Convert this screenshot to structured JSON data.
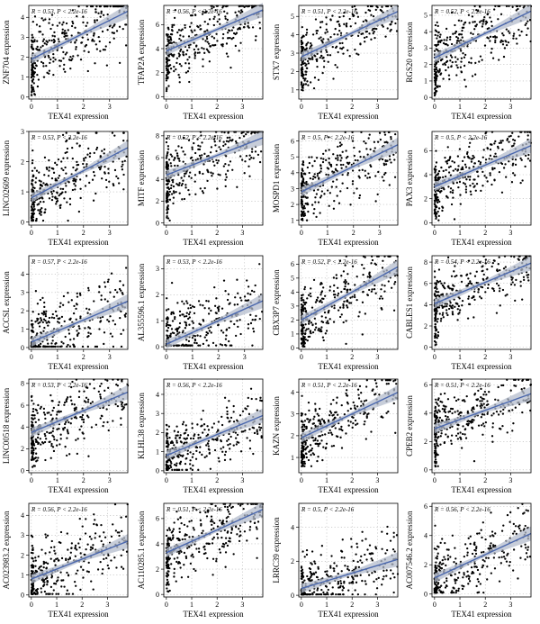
{
  "figure": {
    "x_label": "TEX41 expression",
    "y_suffix": " expression",
    "colors": {
      "points": "#000000",
      "fit_line": "#4a67ad",
      "ci_band": "#b4bccc",
      "grid": "#b5b5b5",
      "frame": "#000000"
    }
  },
  "chart_data": [
    {
      "type": "scatter",
      "gene": "ZNF704",
      "r": "0.53",
      "p": "2.2e-16",
      "annotation": "R = 0.53, P < 2.2e-16",
      "xlabel": "TEX41 expression",
      "ylabel": "ZNF704 expression",
      "xticks": [
        0,
        1,
        2,
        3
      ],
      "yticks": [
        0,
        1,
        2,
        3,
        4
      ],
      "xlim": [
        -0.1,
        3.7
      ],
      "ylim": [
        -0.1,
        4.6
      ],
      "fit": {
        "intercept": 1.9,
        "slope": 0.65
      },
      "x_skew": 1.7,
      "x_max": 3.7,
      "point_noise": 0.9,
      "floor_y": 0.1,
      "n_points": 330
    },
    {
      "type": "scatter",
      "gene": "TFAP2A",
      "r": "0.56",
      "p": "2.2e-16",
      "annotation": "R = 0.56, P < 2.2e-16",
      "xlabel": "TEX41 expression",
      "ylabel": "TFAP2A expression",
      "xticks": [
        0,
        1,
        2,
        3
      ],
      "yticks": [
        0,
        2,
        4,
        6
      ],
      "xlim": [
        -0.1,
        3.8
      ],
      "ylim": [
        -0.2,
        7.6
      ],
      "fit": {
        "intercept": 3.8,
        "slope": 0.9
      },
      "x_skew": 1.7,
      "x_max": 3.8,
      "point_noise": 1.3,
      "floor_y": 0.2,
      "n_points": 330
    },
    {
      "type": "scatter",
      "gene": "STX7",
      "r": "0.51",
      "p": "2.2e-16",
      "annotation": "R = 0.51, P < 2.2e-16",
      "xlabel": "TEX41 expression",
      "ylabel": "STX7 expression",
      "xticks": [
        0,
        1,
        2,
        3
      ],
      "yticks": [
        1,
        2,
        3,
        4,
        5
      ],
      "xlim": [
        -0.1,
        3.8
      ],
      "ylim": [
        0.5,
        5.6
      ],
      "fit": {
        "intercept": 2.8,
        "slope": 0.65
      },
      "x_skew": 1.7,
      "x_max": 3.8,
      "point_noise": 0.8,
      "floor_y": 0.9,
      "n_points": 330
    },
    {
      "type": "scatter",
      "gene": "RGS20",
      "r": "0.52",
      "p": "2.2e-16",
      "annotation": "R = 0.52, P < 2.2e-16",
      "xlabel": "TEX41 expression",
      "ylabel": "RGS20 expression",
      "xticks": [
        0,
        1,
        2,
        3
      ],
      "yticks": [
        0,
        1,
        2,
        3,
        4,
        5
      ],
      "xlim": [
        -0.1,
        3.8
      ],
      "ylim": [
        -0.1,
        5.6
      ],
      "fit": {
        "intercept": 2.4,
        "slope": 0.75
      },
      "x_skew": 1.7,
      "x_max": 3.8,
      "point_noise": 1.0,
      "floor_y": 0.1,
      "n_points": 330
    },
    {
      "type": "scatter",
      "gene": "LINC02609",
      "r": "0.53",
      "p": "2.2e-16",
      "annotation": "R = 0.53, P < 2.2e-16",
      "xlabel": "TEX41 expression",
      "ylabel": "LINC02609 expression",
      "xticks": [
        0,
        1,
        2,
        3
      ],
      "yticks": [
        0,
        1,
        2,
        3
      ],
      "xlim": [
        -0.1,
        3.7
      ],
      "ylim": [
        -0.1,
        3.0
      ],
      "fit": {
        "intercept": 0.8,
        "slope": 0.45
      },
      "x_skew": 1.7,
      "x_max": 3.7,
      "point_noise": 0.6,
      "floor_y": 0.05,
      "n_points": 330
    },
    {
      "type": "scatter",
      "gene": "MITF",
      "r": "0.52",
      "p": "2.2e-16",
      "annotation": "R = 0.52, P < 2.2e-16",
      "xlabel": "TEX41 expression",
      "ylabel": "MITF expression",
      "xticks": [
        0,
        1,
        2,
        3
      ],
      "yticks": [
        0,
        2,
        4,
        6,
        8
      ],
      "xlim": [
        -0.1,
        3.8
      ],
      "ylim": [
        -0.2,
        8.4
      ],
      "fit": {
        "intercept": 4.4,
        "slope": 0.9
      },
      "x_skew": 1.7,
      "x_max": 3.8,
      "point_noise": 1.3,
      "floor_y": 0.2,
      "n_points": 330
    },
    {
      "type": "scatter",
      "gene": "MOSPD1",
      "r": "0.5",
      "p": "2.2e-16",
      "annotation": "R = 0.5, P < 2.2e-16",
      "xlabel": "TEX41 expression",
      "ylabel": "MOSPD1 expression",
      "xticks": [
        0,
        1,
        2,
        3
      ],
      "yticks": [
        1,
        2,
        3,
        4,
        5,
        6
      ],
      "xlim": [
        -0.1,
        3.7
      ],
      "ylim": [
        0.7,
        6.6
      ],
      "fit": {
        "intercept": 2.8,
        "slope": 0.8
      },
      "x_skew": 1.7,
      "x_max": 3.7,
      "point_noise": 1.0,
      "floor_y": 1.0,
      "n_points": 330
    },
    {
      "type": "scatter",
      "gene": "PAX3",
      "r": "0.5",
      "p": "2.2e-16",
      "annotation": "R = 0.5, P < 2.2e-16",
      "xlabel": "TEX41 expression",
      "ylabel": "PAX3 expression",
      "xticks": [
        0,
        1,
        2,
        3
      ],
      "yticks": [
        0,
        2,
        4,
        6
      ],
      "xlim": [
        -0.1,
        3.8
      ],
      "ylim": [
        -0.2,
        7.6
      ],
      "fit": {
        "intercept": 3.0,
        "slope": 0.9
      },
      "x_skew": 1.7,
      "x_max": 3.8,
      "point_noise": 1.3,
      "floor_y": 0.2,
      "n_points": 330
    },
    {
      "type": "scatter",
      "gene": "ACCSL",
      "r": "0.57",
      "p": "2.2e-16",
      "annotation": "R = 0.57, P < 2.2e-16",
      "xlabel": "TEX41 expression",
      "ylabel": "ACCSL expression",
      "xticks": [
        0,
        1,
        2,
        3
      ],
      "yticks": [
        0,
        1,
        2,
        3,
        4
      ],
      "xlim": [
        -0.1,
        3.7
      ],
      "ylim": [
        -0.1,
        5.0
      ],
      "fit": {
        "intercept": 0.3,
        "slope": 0.6
      },
      "x_skew": 1.7,
      "x_max": 3.7,
      "point_noise": 1.0,
      "floor_y": 0.05,
      "n_points": 330
    },
    {
      "type": "scatter",
      "gene": "AL355596.1",
      "r": "0.53",
      "p": "2.2e-16",
      "annotation": "R = 0.53, P < 2.2e-16",
      "xlabel": "TEX41 expression",
      "ylabel": "AL355596.1 expression",
      "xticks": [
        0,
        1,
        2,
        3
      ],
      "yticks": [
        0,
        1,
        2,
        3
      ],
      "xlim": [
        -0.1,
        3.7
      ],
      "ylim": [
        -0.1,
        3.5
      ],
      "fit": {
        "intercept": 0.1,
        "slope": 0.45
      },
      "x_skew": 1.7,
      "x_max": 3.7,
      "point_noise": 0.7,
      "floor_y": 0.05,
      "n_points": 330
    },
    {
      "type": "scatter",
      "gene": "CBX3P7",
      "r": "0.52",
      "p": "2.2e-16",
      "annotation": "R = 0.52, P < 2.2e-16",
      "xlabel": "TEX41 expression",
      "ylabel": "CBX3P7 expression",
      "xticks": [
        0,
        1,
        2,
        3
      ],
      "yticks": [
        0,
        1,
        2,
        3,
        4,
        5,
        6
      ],
      "xlim": [
        -0.1,
        3.8
      ],
      "ylim": [
        -0.1,
        6.6
      ],
      "fit": {
        "intercept": 2.0,
        "slope": 1.0
      },
      "x_skew": 1.7,
      "x_max": 3.8,
      "point_noise": 1.1,
      "floor_y": 0.1,
      "n_points": 330
    },
    {
      "type": "scatter",
      "gene": "CABLES1",
      "r": "0.54",
      "p": "2.2e-16",
      "annotation": "R = 0.54, P < 2.2e-16",
      "xlabel": "TEX41 expression",
      "ylabel": "CABLES1 expression",
      "xticks": [
        0,
        1,
        2,
        3
      ],
      "yticks": [
        0,
        2,
        4,
        6,
        8
      ],
      "xlim": [
        -0.1,
        3.8
      ],
      "ylim": [
        -0.2,
        8.6
      ],
      "fit": {
        "intercept": 4.1,
        "slope": 1.0
      },
      "x_skew": 1.7,
      "x_max": 3.8,
      "point_noise": 1.2,
      "floor_y": 0.2,
      "n_points": 330
    },
    {
      "type": "scatter",
      "gene": "LINC00518",
      "r": "0.53",
      "p": "2.2e-16",
      "annotation": "R = 0.53, P < 2.2e-16",
      "xlabel": "TEX41 expression",
      "ylabel": "LINC00518 expression",
      "xticks": [
        0,
        1,
        2,
        3
      ],
      "yticks": [
        0,
        2,
        4,
        6,
        8
      ],
      "xlim": [
        -0.1,
        3.7
      ],
      "ylim": [
        -0.2,
        8.4
      ],
      "fit": {
        "intercept": 3.5,
        "slope": 1.0
      },
      "x_skew": 1.7,
      "x_max": 3.7,
      "point_noise": 1.4,
      "floor_y": 0.2,
      "n_points": 330
    },
    {
      "type": "scatter",
      "gene": "KLHL38",
      "r": "0.56",
      "p": "2.2e-16",
      "annotation": "R = 0.56, P < 2.2e-16",
      "xlabel": "TEX41 expression",
      "ylabel": "KLHL38 expression",
      "xticks": [
        0,
        1,
        2,
        3
      ],
      "yticks": [
        0,
        1,
        2,
        3,
        4
      ],
      "xlim": [
        -0.1,
        3.8
      ],
      "ylim": [
        -0.1,
        4.8
      ],
      "fit": {
        "intercept": 0.8,
        "slope": 0.55
      },
      "x_skew": 1.7,
      "x_max": 3.8,
      "point_noise": 0.8,
      "floor_y": 0.05,
      "n_points": 330
    },
    {
      "type": "scatter",
      "gene": "KAZN",
      "r": "0.51",
      "p": "2.2e-16",
      "annotation": "R = 0.51, P < 2.2e-16",
      "xlabel": "TEX41 expression",
      "ylabel": "KAZN expression",
      "xticks": [
        0,
        1,
        2,
        3
      ],
      "yticks": [
        1,
        2,
        3,
        4
      ],
      "xlim": [
        -0.1,
        3.8
      ],
      "ylim": [
        0.3,
        4.6
      ],
      "fit": {
        "intercept": 1.9,
        "slope": 0.55
      },
      "x_skew": 1.7,
      "x_max": 3.8,
      "point_noise": 0.7,
      "floor_y": 0.6,
      "n_points": 330
    },
    {
      "type": "scatter",
      "gene": "CPEB2",
      "r": "0.51",
      "p": "2.2e-16",
      "annotation": "R = 0.51, P < 2.2e-16",
      "xlabel": "TEX41 expression",
      "ylabel": "CPEB2 expression",
      "xticks": [
        0,
        1,
        2,
        3
      ],
      "yticks": [
        0,
        2,
        4,
        6
      ],
      "xlim": [
        -0.1,
        3.8
      ],
      "ylim": [
        -0.2,
        6.4
      ],
      "fit": {
        "intercept": 2.9,
        "slope": 0.65
      },
      "x_skew": 1.7,
      "x_max": 3.8,
      "point_noise": 1.0,
      "floor_y": 0.2,
      "n_points": 330
    },
    {
      "type": "scatter",
      "gene": "AC023983.2",
      "r": "0.56",
      "p": "2.2e-16",
      "annotation": "R = 0.56, P < 2.2e-16",
      "xlabel": "TEX41 expression",
      "ylabel": "AC023983.2 expression",
      "xticks": [
        0,
        1,
        2,
        3
      ],
      "yticks": [
        0,
        1,
        2,
        3,
        4
      ],
      "xlim": [
        -0.1,
        3.8
      ],
      "ylim": [
        -0.1,
        4.6
      ],
      "fit": {
        "intercept": 0.8,
        "slope": 0.5
      },
      "x_skew": 1.7,
      "x_max": 3.8,
      "point_noise": 0.8,
      "floor_y": 0.05,
      "n_points": 330
    },
    {
      "type": "scatter",
      "gene": "AC110285.1",
      "r": "0.51",
      "p": "2.2e-16",
      "annotation": "R = 0.51, P < 2.2e-16",
      "xlabel": "TEX41 expression",
      "ylabel": "AC110285.1 expression",
      "xticks": [
        0,
        1,
        2,
        3
      ],
      "yticks": [
        0,
        2,
        4,
        6
      ],
      "xlim": [
        -0.1,
        3.8
      ],
      "ylim": [
        -0.2,
        7.2
      ],
      "fit": {
        "intercept": 3.3,
        "slope": 0.9
      },
      "x_skew": 1.7,
      "x_max": 3.8,
      "point_noise": 1.2,
      "floor_y": 0.2,
      "n_points": 330
    },
    {
      "type": "scatter",
      "gene": "LRRC39",
      "r": "0.5",
      "p": "2.2e-16",
      "annotation": "R = 0.5, P < 2.2e-16",
      "xlabel": "TEX41 expression",
      "ylabel": "LRRC39 expression",
      "xticks": [
        0,
        1,
        2,
        3
      ],
      "yticks": [
        0,
        2,
        4
      ],
      "xlim": [
        -0.1,
        3.8
      ],
      "ylim": [
        -0.1,
        5.4
      ],
      "fit": {
        "intercept": 0.4,
        "slope": 0.45
      },
      "x_skew": 1.7,
      "x_max": 3.8,
      "point_noise": 0.9,
      "floor_y": 0.05,
      "n_points": 330
    },
    {
      "type": "scatter",
      "gene": "AC007546.2",
      "r": "0.56",
      "p": "2.2e-16",
      "annotation": "R = 0.56, P < 2.2e-16",
      "xlabel": "TEX41 expression",
      "ylabel": "AC007546.2 expression",
      "xticks": [
        0,
        1,
        2,
        3
      ],
      "yticks": [
        0,
        2,
        4,
        6
      ],
      "xlim": [
        -0.1,
        3.8
      ],
      "ylim": [
        -0.2,
        6.2
      ],
      "fit": {
        "intercept": 1.1,
        "slope": 0.8
      },
      "x_skew": 1.7,
      "x_max": 3.8,
      "point_noise": 1.1,
      "floor_y": 0.1,
      "n_points": 330
    }
  ]
}
